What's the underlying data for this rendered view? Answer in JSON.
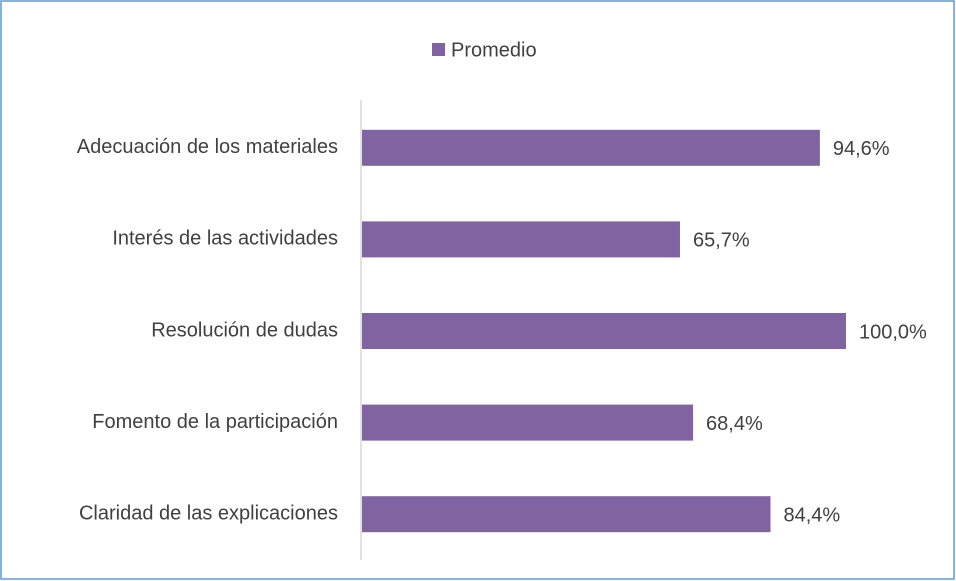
{
  "chart_data": {
    "type": "hbar",
    "categories": [
      "Adecuación de los materiales",
      "Interés de las actividades",
      "Resolución de dudas",
      "Fomento de la participación",
      "Claridad de las explicaciones"
    ],
    "series": [
      {
        "name": "Promedio",
        "color": "#8064a2",
        "values": [
          94.6,
          65.7,
          100.0,
          68.4,
          84.4
        ],
        "value_labels": [
          "94,6%",
          "65,7%",
          "100,0%",
          "68,4%",
          "84,4%"
        ]
      }
    ],
    "xlim": [
      0,
      100
    ],
    "legend": "top"
  }
}
